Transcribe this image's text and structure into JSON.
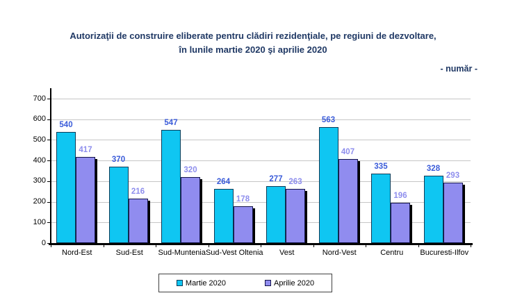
{
  "title": {
    "line1": "Autorizaţii de construire eliberate pentru clădiri rezidenţiale, pe regiuni de dezvoltare,",
    "line2": "în lunile martie 2020  şi aprilie 2020"
  },
  "unit_note": "- număr -",
  "colors": {
    "title": "#1F3864",
    "gridline": "#C6C6C6",
    "axis": "#000000",
    "legend_border": "#404040",
    "shadow": "#000000"
  },
  "chart_data": {
    "type": "bar",
    "categories": [
      "Nord-Est",
      "Sud-Est",
      "Sud-Muntenia",
      "Sud-Vest Oltenia",
      "Vest",
      "Nord-Vest",
      "Centru",
      "Bucuresti-Ilfov"
    ],
    "series": [
      {
        "name": "Martie 2020",
        "values": [
          540,
          370,
          547,
          264,
          277,
          563,
          335,
          328
        ],
        "color": "#0FC6F2",
        "border_color": "#0D3B57",
        "label_color": "#3A5BD9"
      },
      {
        "name": "Aprilie 2020",
        "values": [
          417,
          216,
          320,
          178,
          263,
          407,
          196,
          293
        ],
        "color": "#908CEF",
        "border_color": "#13134A",
        "label_color": "#8E8EED"
      }
    ],
    "title": "Autorizaţii de construire eliberate pentru clădiri rezidenţiale, pe regiuni de dezvoltare, în lunile martie 2020 şi aprilie 2020",
    "xlabel": "",
    "ylabel": "",
    "ylim": [
      0,
      700
    ],
    "ytick_step": 100,
    "grid": true,
    "legend_position": "bottom",
    "data_labels": true
  }
}
